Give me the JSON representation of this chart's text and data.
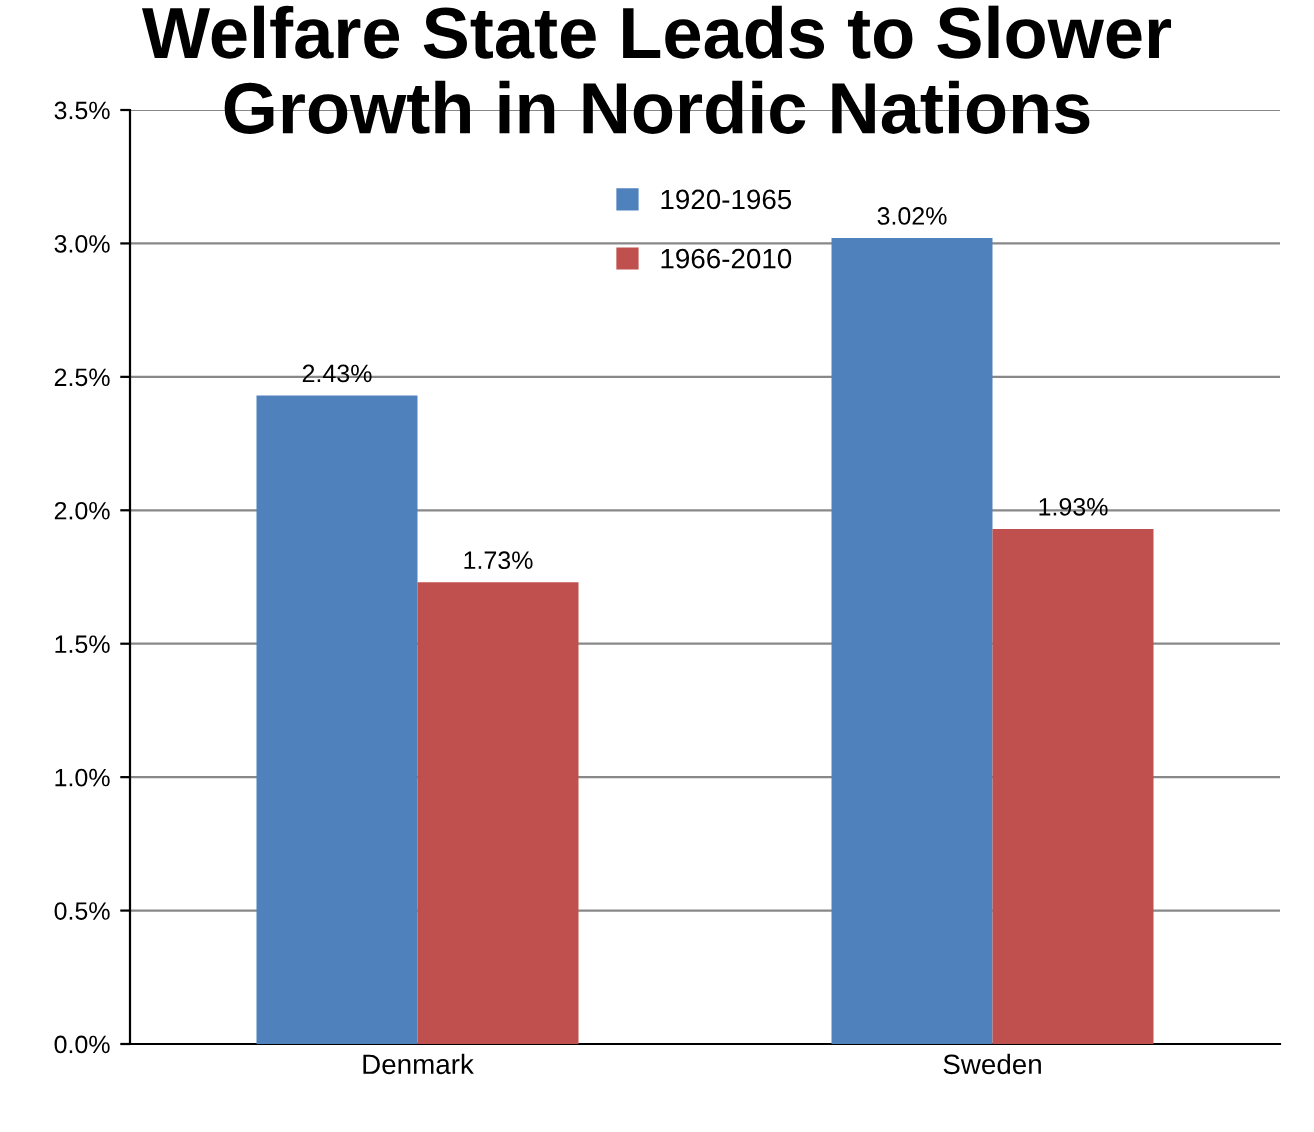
{
  "chart_data": {
    "type": "bar",
    "title": "Welfare State Leads to Slower\nGrowth in Nordic Nations",
    "categories": [
      "Denmark",
      "Sweden"
    ],
    "series": [
      {
        "name": "1920-1965",
        "color": "#4f81bd",
        "values": [
          2.43,
          3.02
        ],
        "value_labels": [
          "2.43%",
          "3.02%"
        ]
      },
      {
        "name": "1966-2010",
        "color": "#c0504d",
        "values": [
          1.73,
          1.93
        ],
        "value_labels": [
          "1.73%",
          "1.93%"
        ]
      }
    ],
    "ylim": [
      0,
      3.5
    ],
    "yticks": [
      {
        "value": 0,
        "label": "0.0%"
      },
      {
        "value": 0.5,
        "label": "0.5%"
      },
      {
        "value": 1.0,
        "label": "1.0%"
      },
      {
        "value": 1.5,
        "label": "1.5%"
      },
      {
        "value": 2.0,
        "label": "2.0%"
      },
      {
        "value": 2.5,
        "label": "2.5%"
      },
      {
        "value": 3.0,
        "label": "3.0%"
      },
      {
        "value": 3.5,
        "label": "3.5%"
      }
    ],
    "grid": "y",
    "legend": "top"
  }
}
